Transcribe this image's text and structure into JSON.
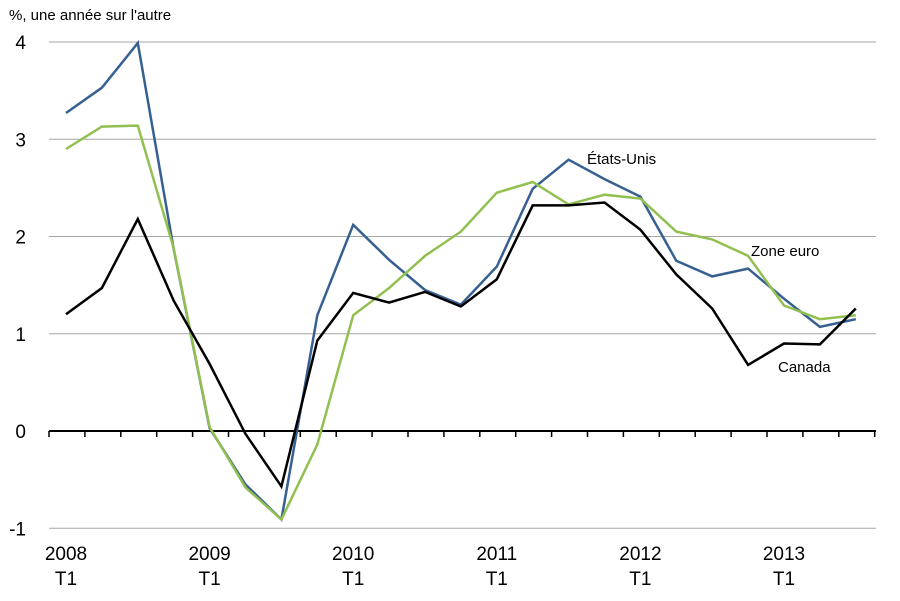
{
  "chart_data": {
    "type": "line",
    "ylabel": "%, une année sur l'autre",
    "ylim": [
      -1,
      4
    ],
    "yticks": [
      -1,
      0,
      1,
      2,
      3,
      4
    ],
    "ytick_labels": [
      "-1",
      "0",
      "1",
      "2",
      "3",
      "4"
    ],
    "x": [
      "2008T1",
      "2008T2",
      "2008T3",
      "2008T4",
      "2009T1",
      "2009T2",
      "2009T3",
      "2009T4",
      "2010T1",
      "2010T2",
      "2010T3",
      "2010T4",
      "2011T1",
      "2011T2",
      "2011T3",
      "2011T4",
      "2012T1",
      "2012T2",
      "2012T3",
      "2012T4",
      "2013T1",
      "2013T2",
      "2013T3"
    ],
    "year_labels": [
      {
        "index": 0,
        "year": "2008",
        "quarter": "T1"
      },
      {
        "index": 4,
        "year": "2009",
        "quarter": "T1"
      },
      {
        "index": 8,
        "year": "2010",
        "quarter": "T1"
      },
      {
        "index": 12,
        "year": "2011",
        "quarter": "T1"
      },
      {
        "index": 16,
        "year": "2012",
        "quarter": "T1"
      },
      {
        "index": 20,
        "year": "2013",
        "quarter": "T1"
      }
    ],
    "grid": true,
    "series": [
      {
        "name": "États-Unis",
        "color": "#376092",
        "values": [
          3.27,
          3.53,
          3.99,
          1.87,
          0.03,
          -0.55,
          -0.91,
          1.19,
          2.12,
          1.76,
          1.45,
          1.3,
          1.69,
          2.49,
          2.79,
          2.59,
          2.41,
          1.75,
          1.59,
          1.67,
          1.36,
          1.07,
          1.15
        ]
      },
      {
        "name": "Zone euro",
        "color": "#92c050",
        "values": [
          2.9,
          3.13,
          3.14,
          1.88,
          0.04,
          -0.58,
          -0.91,
          -0.14,
          1.19,
          1.47,
          1.8,
          2.05,
          2.45,
          2.56,
          2.33,
          2.43,
          2.39,
          2.05,
          1.97,
          1.8,
          1.29,
          1.15,
          1.19
        ]
      },
      {
        "name": "Canada",
        "color": "#000000",
        "values": [
          1.2,
          1.47,
          2.18,
          1.34,
          0.69,
          -0.03,
          -0.57,
          0.93,
          1.42,
          1.32,
          1.43,
          1.28,
          1.56,
          2.32,
          2.32,
          2.35,
          2.07,
          1.61,
          1.26,
          0.68,
          0.9,
          0.89,
          1.26
        ]
      }
    ],
    "annotations": [
      {
        "text": "États-Unis",
        "series": "États-Unis"
      },
      {
        "text": "Zone euro",
        "series": "Zone euro"
      },
      {
        "text": "Canada",
        "series": "Canada"
      }
    ]
  }
}
